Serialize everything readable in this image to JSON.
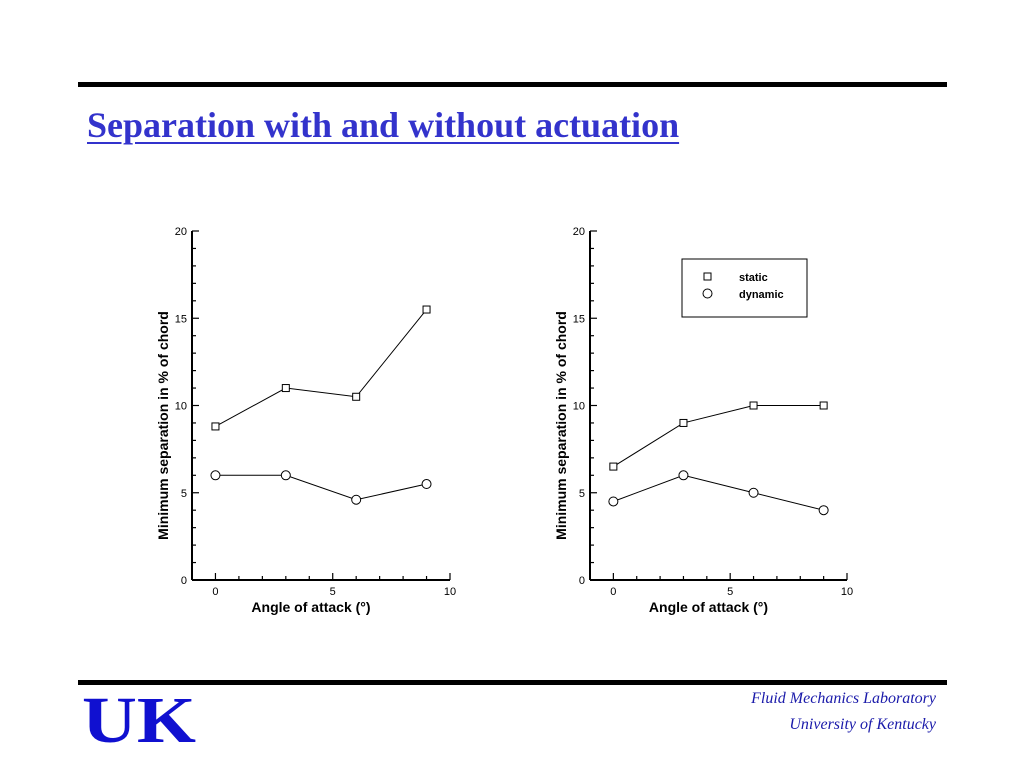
{
  "slide": {
    "title": "Separation with and without actuation",
    "footer_line1": "Fluid Mechanics Laboratory",
    "footer_line2": "University of Kentucky",
    "logo_text": "UK",
    "title_color": "#3333cc",
    "footer_color": "#1a1aaa",
    "logo_color": "#1010d0"
  },
  "chart_data": [
    {
      "type": "line",
      "xlabel": "Angle of attack (°)",
      "ylabel": "Minimum separation in % of chord",
      "xlim": [
        -1,
        10
      ],
      "ylim": [
        0,
        20
      ],
      "xticks": [
        0,
        5,
        10
      ],
      "yticks": [
        0,
        5,
        10,
        15,
        20
      ],
      "grid": false,
      "series": [
        {
          "marker": "square",
          "x": [
            0,
            3,
            6,
            9
          ],
          "values": [
            8.8,
            11,
            10.5,
            15.5
          ]
        },
        {
          "marker": "circle",
          "x": [
            0,
            3,
            6,
            9
          ],
          "values": [
            6,
            6,
            4.6,
            5.5
          ]
        }
      ]
    },
    {
      "type": "line",
      "xlabel": "Angle of attack (°)",
      "ylabel": "Minimum separation in % of chord",
      "xlim": [
        -1,
        10
      ],
      "ylim": [
        0,
        20
      ],
      "xticks": [
        0,
        5,
        10
      ],
      "yticks": [
        0,
        5,
        10,
        15,
        20
      ],
      "grid": false,
      "legend": "top-right",
      "series": [
        {
          "name": "static",
          "marker": "square",
          "x": [
            0,
            3,
            6,
            9
          ],
          "values": [
            6.5,
            9,
            10,
            10
          ]
        },
        {
          "name": "dynamic",
          "marker": "circle",
          "x": [
            0,
            3,
            6,
            9
          ],
          "values": [
            4.5,
            6,
            5,
            4
          ]
        }
      ]
    }
  ]
}
